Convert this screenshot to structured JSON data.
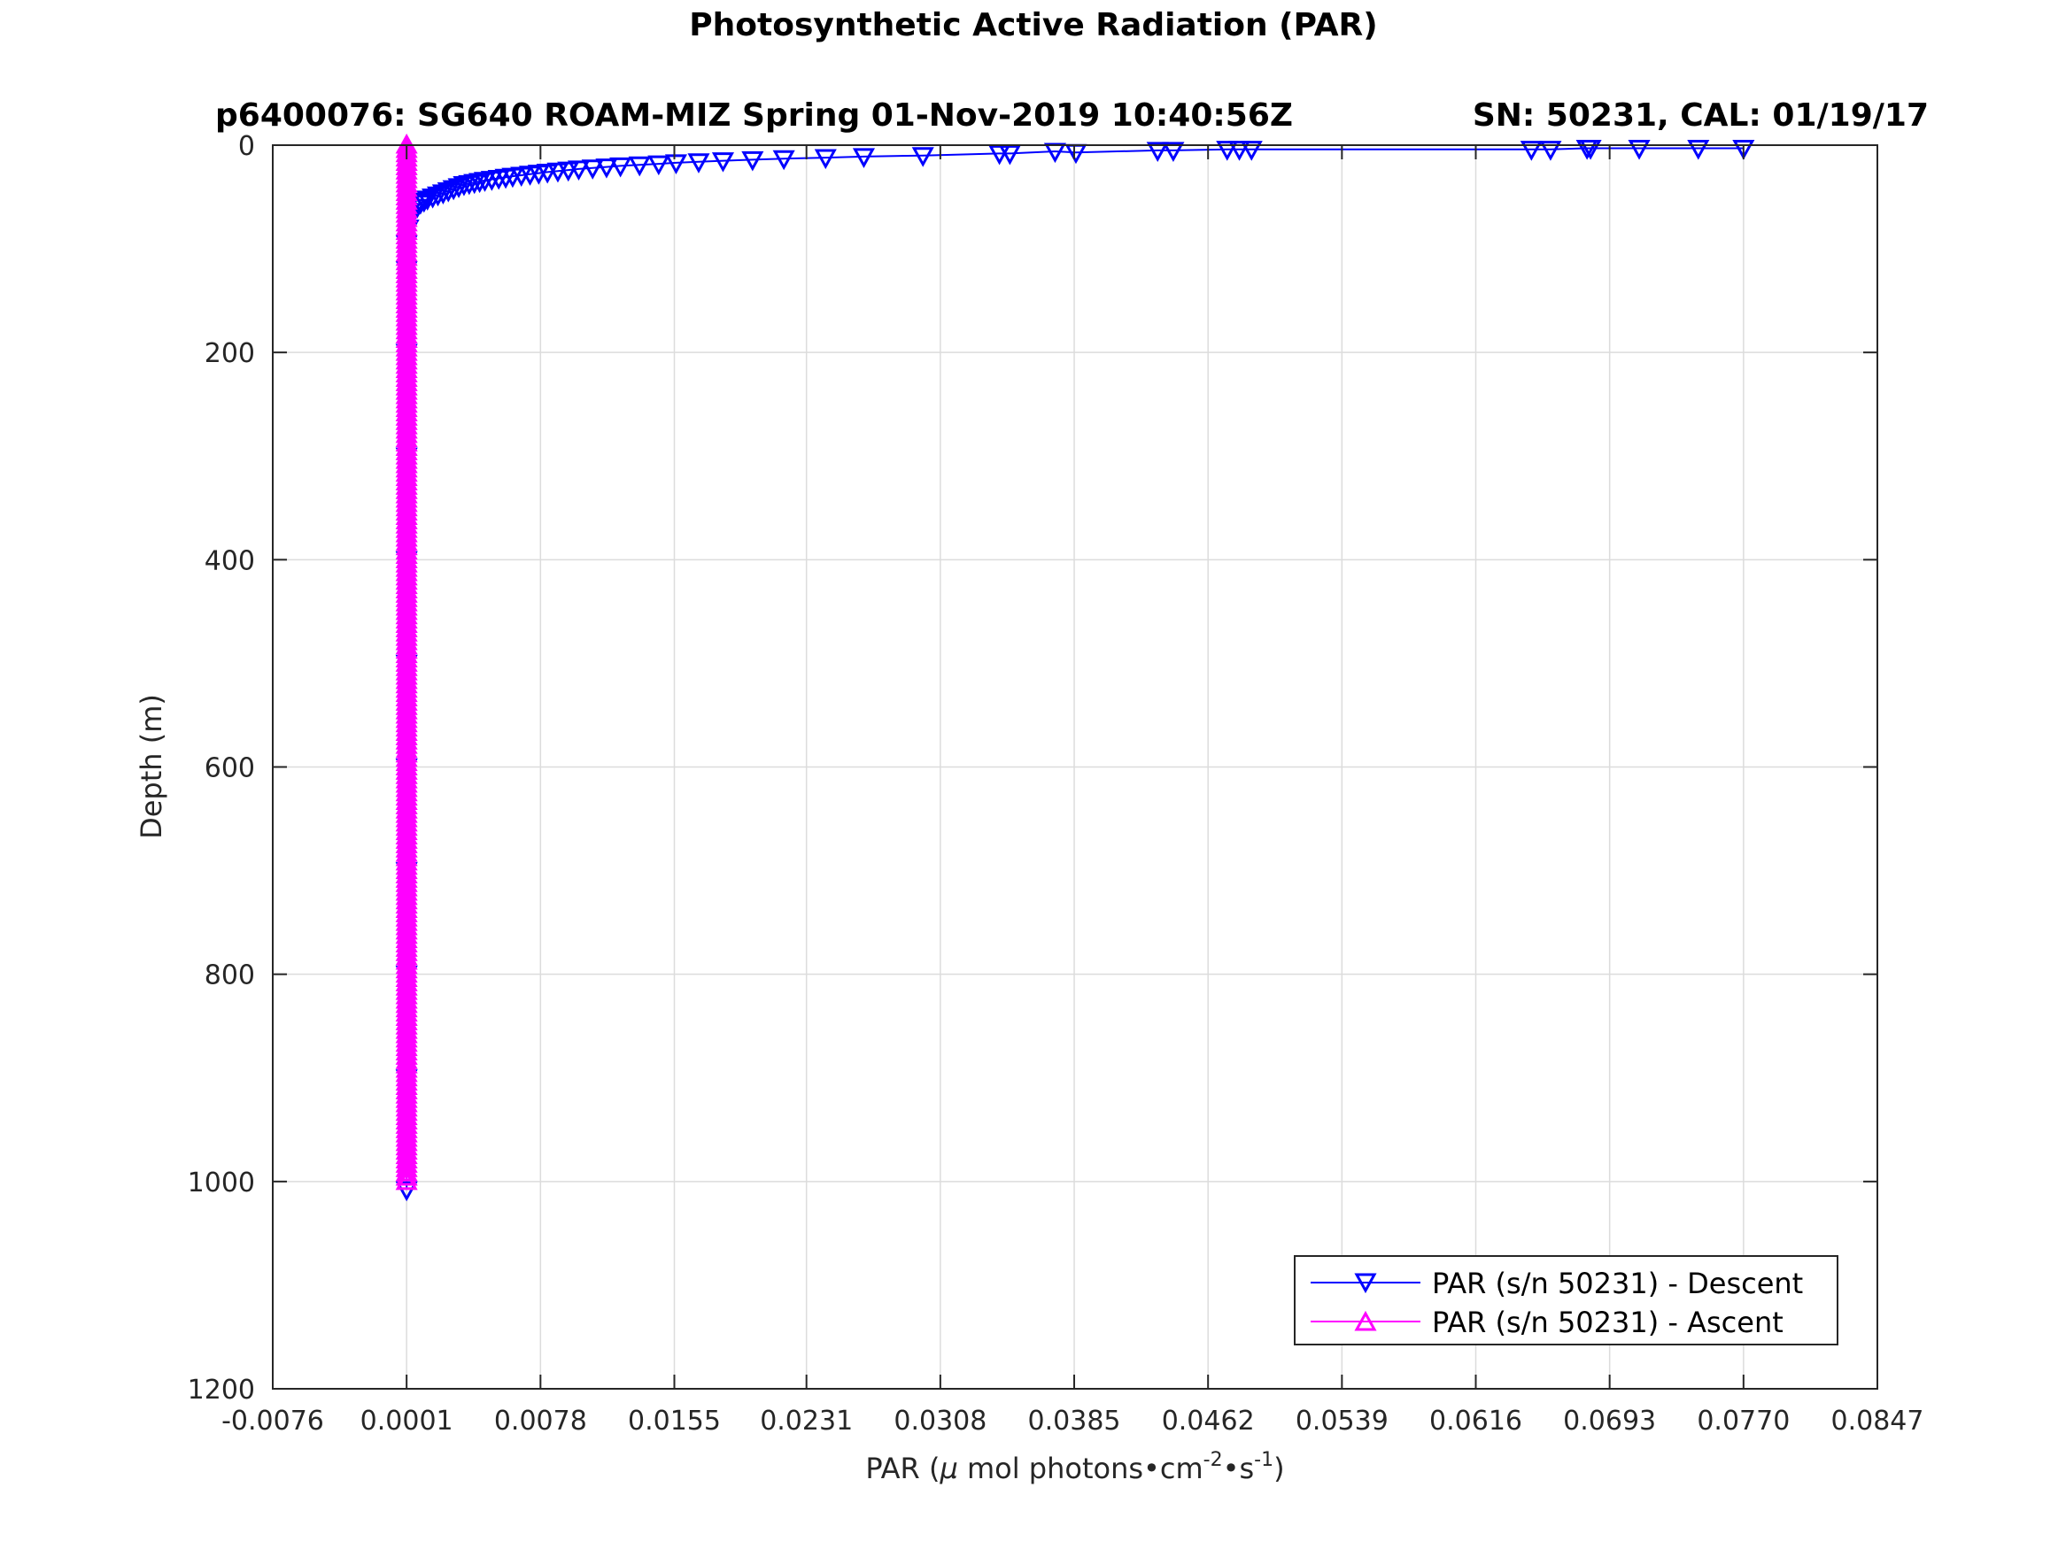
{
  "chart_data": {
    "type": "line",
    "title": "Photosynthetic Active Radiation (PAR)",
    "subtitle_left": "p6400076: SG640 ROAM-MIZ Spring 01-Nov-2019 10:40:56Z",
    "subtitle_right": "SN: 50231, CAL: 01/19/17",
    "xlabel": {
      "prefix": "PAR (",
      "mu": "μ",
      "mid": " mol photons•cm",
      "sup1": "-2",
      "dot": "•s",
      "sup2": "-1",
      "suffix": ")"
    },
    "ylabel": "Depth (m)",
    "xlim": [
      -0.0076,
      0.0847
    ],
    "ylim": [
      0,
      1200
    ],
    "y_reversed": true,
    "grid": true,
    "legend_position": "bottom-right",
    "x_ticks": [
      "-0.0076",
      "0.0001",
      "0.0078",
      "0.0155",
      "0.0231",
      "0.0308",
      "0.0385",
      "0.0462",
      "0.0539",
      "0.0616",
      "0.0693",
      "0.0770",
      "0.0847"
    ],
    "y_ticks": [
      "0",
      "200",
      "400",
      "600",
      "800",
      "1000",
      "1200"
    ],
    "series": [
      {
        "name": "PAR (s/n 50231) - Descent",
        "color": "#0000ff",
        "marker": "triangle-down",
        "points": [
          [
            0.077,
            3
          ],
          [
            0.0744,
            3
          ],
          [
            0.071,
            3
          ],
          [
            0.0682,
            3
          ],
          [
            0.068,
            3
          ],
          [
            0.0659,
            4
          ],
          [
            0.0648,
            4
          ],
          [
            0.0487,
            4
          ],
          [
            0.048,
            4
          ],
          [
            0.0473,
            4
          ],
          [
            0.0442,
            5
          ],
          [
            0.0433,
            5
          ],
          [
            0.0386,
            7
          ],
          [
            0.0374,
            6
          ],
          [
            0.0348,
            8
          ],
          [
            0.0342,
            8
          ],
          [
            0.0298,
            10
          ],
          [
            0.0264,
            11
          ],
          [
            0.0242,
            12
          ],
          [
            0.0218,
            13
          ],
          [
            0.02,
            14
          ],
          [
            0.0183,
            15
          ],
          [
            0.0169,
            16
          ],
          [
            0.0156,
            17
          ],
          [
            0.0146,
            18
          ],
          [
            0.0135,
            19
          ],
          [
            0.0124,
            20
          ],
          [
            0.0116,
            21
          ],
          [
            0.0108,
            22
          ],
          [
            0.01,
            23
          ],
          [
            0.0094,
            24
          ],
          [
            0.0088,
            25
          ],
          [
            0.0082,
            26
          ],
          [
            0.0077,
            27
          ],
          [
            0.0072,
            28
          ],
          [
            0.0067,
            29
          ],
          [
            0.0062,
            30
          ],
          [
            0.0058,
            31
          ],
          [
            0.0054,
            32
          ],
          [
            0.005,
            33
          ],
          [
            0.0046,
            34
          ],
          [
            0.0043,
            35
          ],
          [
            0.004,
            36
          ],
          [
            0.0037,
            37
          ],
          [
            0.0034,
            38
          ],
          [
            0.0031,
            40
          ],
          [
            0.0028,
            42
          ],
          [
            0.0025,
            44
          ],
          [
            0.0022,
            46
          ],
          [
            0.0019,
            48
          ],
          [
            0.0016,
            50
          ],
          [
            0.0013,
            52
          ],
          [
            0.0011,
            54
          ],
          [
            0.0009,
            56
          ],
          [
            0.0007,
            60
          ],
          [
            0.0005,
            64
          ],
          [
            0.0003,
            70
          ],
          [
            0.0002,
            80
          ],
          [
            0.0001,
            95
          ],
          [
            0.0001,
            120
          ],
          [
            0.0001,
            200
          ],
          [
            0.0001,
            300
          ],
          [
            0.0001,
            400
          ],
          [
            0.0001,
            500
          ],
          [
            0.0001,
            600
          ],
          [
            0.0001,
            700
          ],
          [
            0.0001,
            800
          ],
          [
            0.0001,
            900
          ],
          [
            0.0001,
            1008
          ]
        ]
      },
      {
        "name": "PAR (s/n 50231) - Ascent",
        "color": "#ff00ff",
        "marker": "triangle-up",
        "points": [
          [
            0.0001,
            1000
          ],
          [
            0.0001,
            900
          ],
          [
            0.0001,
            800
          ],
          [
            0.0001,
            700
          ],
          [
            0.0001,
            600
          ],
          [
            0.0001,
            500
          ],
          [
            0.0001,
            400
          ],
          [
            0.0001,
            300
          ],
          [
            0.0001,
            200
          ],
          [
            0.0001,
            100
          ],
          [
            0.0001,
            0
          ]
        ]
      }
    ]
  }
}
